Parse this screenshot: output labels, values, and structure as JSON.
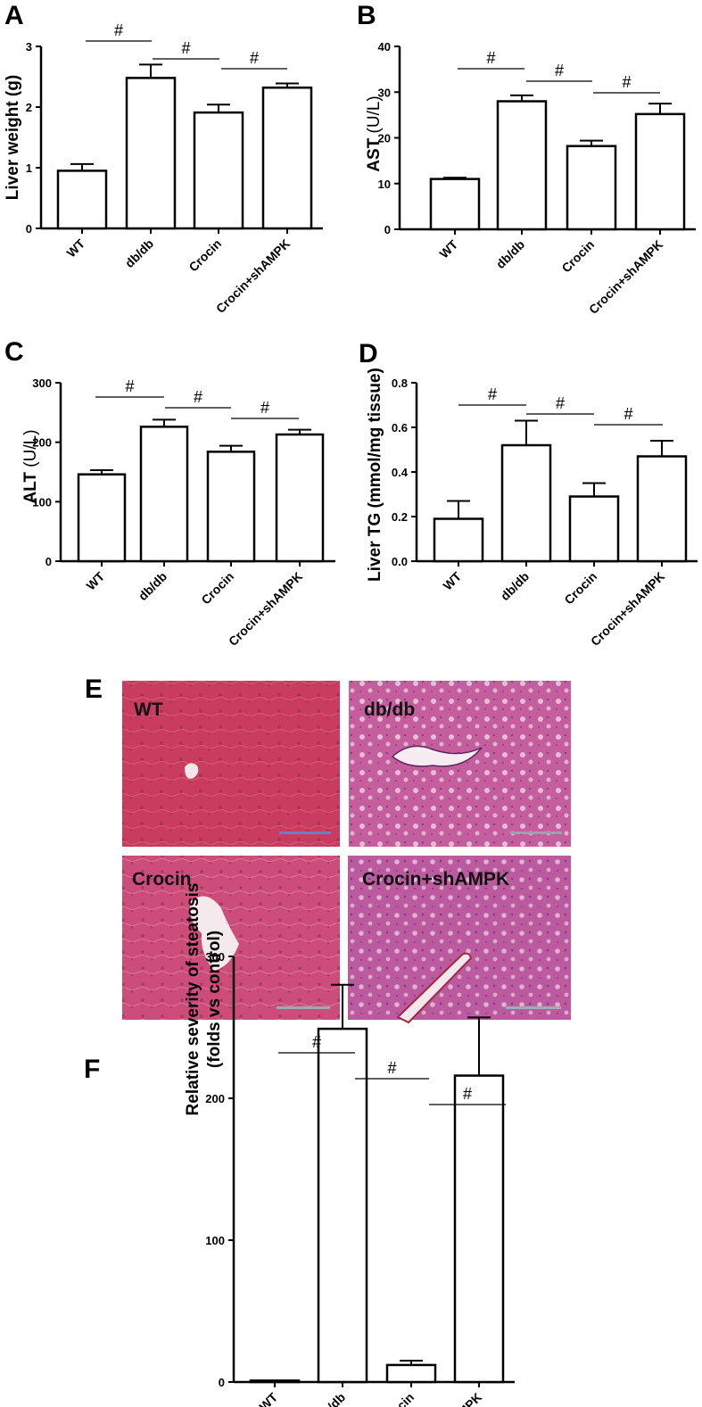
{
  "chart_data": [
    {
      "panel": "A",
      "type": "bar",
      "categories": [
        "WT",
        "db/db",
        "Crocin",
        "Crocin+shAMPK"
      ],
      "values": [
        0.95,
        2.48,
        1.91,
        2.32
      ],
      "errors": [
        0.11,
        0.22,
        0.13,
        0.07
      ],
      "ylabel": "Liver weight (g)",
      "ylim": [
        0,
        3
      ],
      "yticks": [
        "0",
        "1",
        "2",
        "3"
      ],
      "significance": [
        "#",
        "#",
        "#"
      ]
    },
    {
      "panel": "B",
      "type": "bar",
      "categories": [
        "WT",
        "db/db",
        "Crocin",
        "Crocin+shAMPK"
      ],
      "values": [
        11,
        28,
        18.2,
        25.2
      ],
      "errors": [
        0.3,
        1.3,
        1.2,
        2.3
      ],
      "ylabel": "AST (U/L)",
      "ylabel_bold": "AST",
      "ylabel_unit": " (U/L)",
      "ylim": [
        0,
        40
      ],
      "yticks": [
        "0",
        "10",
        "20",
        "30",
        "40"
      ],
      "significance": [
        "#",
        "#",
        "#"
      ]
    },
    {
      "panel": "C",
      "type": "bar",
      "categories": [
        "WT",
        "db/db",
        "Crocin",
        "Crocin+shAMPK"
      ],
      "values": [
        146,
        226,
        184,
        213
      ],
      "errors": [
        7,
        12,
        10,
        8
      ],
      "ylabel": "ALT (U/L)",
      "ylabel_bold": "ALT",
      "ylabel_unit": " (U/L)",
      "ylim": [
        0,
        300
      ],
      "yticks": [
        "0",
        "100",
        "200",
        "300"
      ],
      "significance": [
        "#",
        "#",
        "#"
      ]
    },
    {
      "panel": "D",
      "type": "bar",
      "categories": [
        "WT",
        "db/db",
        "Crocin",
        "Crocin+shAMPK"
      ],
      "values": [
        0.19,
        0.52,
        0.29,
        0.47
      ],
      "errors": [
        0.08,
        0.11,
        0.06,
        0.07
      ],
      "ylabel": "Liver TG (mmol/mg tissue)",
      "ylim": [
        0,
        0.8
      ],
      "yticks": [
        "0.0",
        "0.2",
        "0.4",
        "0.6",
        "0.8"
      ],
      "significance": [
        "#",
        "#",
        "#"
      ]
    },
    {
      "panel": "F",
      "type": "bar",
      "categories": [
        "WT",
        "db/db",
        "Crocin",
        "Crocin+shAMPK"
      ],
      "values": [
        1,
        249,
        12,
        216
      ],
      "errors": [
        0,
        31,
        3,
        41
      ],
      "ylabel": "Relative severity of steatosis (folds vs control)",
      "ylabel_lines": [
        "Relative severity of steatosis",
        "(folds vs control)"
      ],
      "ylim": [
        0,
        300
      ],
      "yticks": [
        "0",
        "100",
        "200",
        "300"
      ],
      "significance": [
        "#",
        "#",
        "#"
      ]
    }
  ],
  "histology": {
    "panel": "E",
    "images": [
      {
        "label": "WT",
        "color": "#c93c60"
      },
      {
        "label": "db/db",
        "color": "#c45e9c"
      },
      {
        "label": "Crocin",
        "color": "#cc4d7a"
      },
      {
        "label": "Crocin+shAMPK",
        "color": "#bb5a9e"
      }
    ]
  }
}
